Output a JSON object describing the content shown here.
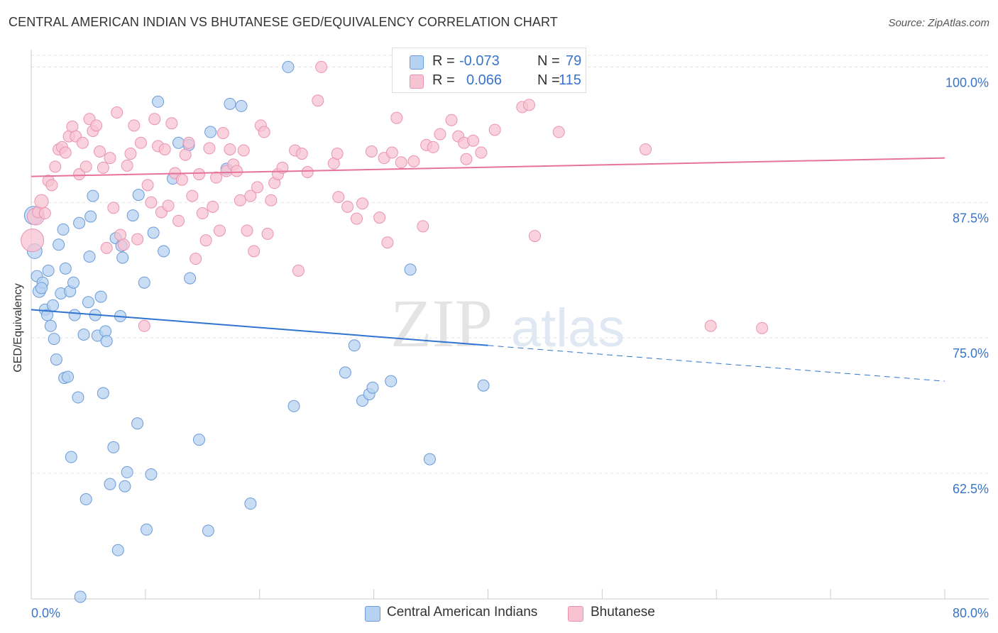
{
  "header": {
    "title": "CENTRAL AMERICAN INDIAN VS BHUTANESE GED/EQUIVALENCY CORRELATION CHART",
    "source": "Source: ZipAtlas.com"
  },
  "watermark": {
    "part1": "ZIP",
    "part2": "atlas"
  },
  "legend_top": {
    "rows": [
      {
        "r_label": "R =",
        "r_value": "-0.073",
        "n_label": "N =",
        "n_value": "79"
      },
      {
        "r_label": "R =",
        "r_value": "0.066",
        "n_label": "N =",
        "n_value": "115"
      }
    ]
  },
  "colors": {
    "blue_fill": "#b7d1f2",
    "blue_stroke": "#6b9bd8",
    "blue_line": "#2f74cf",
    "pink_fill": "#f7c3d3",
    "pink_stroke": "#ea93b0",
    "pink_line": "#e7739a",
    "tick_label": "#3a74c9",
    "grid": "#e3e3e3"
  },
  "chart_data": {
    "type": "scatter",
    "title": "CENTRAL AMERICAN INDIAN VS BHUTANESE GED/EQUIVALENCY CORRELATION CHART",
    "xlabel": "",
    "ylabel": "GED/Equivalency",
    "xlim": [
      0,
      80
    ],
    "ylim": [
      50.9,
      101.6
    ],
    "x_tick_labels": [
      "0.0%",
      "80.0%"
    ],
    "y_ticks": [
      62.5,
      75.0,
      87.5,
      100.0
    ],
    "y_tick_labels": [
      "62.5%",
      "75.0%",
      "87.5%",
      "100.0%"
    ],
    "grid": true,
    "legend_position": "top-center",
    "series": [
      {
        "name": "Central American Indians",
        "R": -0.073,
        "N": 79,
        "trend": {
          "x0": 0,
          "y0": 77.6,
          "x1": 40,
          "y1": 74.3,
          "dash_to_x": 80,
          "dash_to_y": 71.0
        },
        "points": [
          [
            0.2,
            86.3,
            1.6
          ],
          [
            0.3,
            83.0,
            1.3
          ],
          [
            0.5,
            80.7,
            1.0
          ],
          [
            0.7,
            79.3,
            1.1
          ],
          [
            1.0,
            80.1,
            1.0
          ],
          [
            0.9,
            79.6,
            1.0
          ],
          [
            1.2,
            77.6,
            1.0
          ],
          [
            1.5,
            81.2,
            1.0
          ],
          [
            1.4,
            77.1,
            1.0
          ],
          [
            1.7,
            76.1,
            1.0
          ],
          [
            1.9,
            78.0,
            1.0
          ],
          [
            2.0,
            74.9,
            1.0
          ],
          [
            2.2,
            73.0,
            1.0
          ],
          [
            2.4,
            83.6,
            1.0
          ],
          [
            2.6,
            79.1,
            1.0
          ],
          [
            2.8,
            85.0,
            1.0
          ],
          [
            2.9,
            71.3,
            1.0
          ],
          [
            3.0,
            81.4,
            1.0
          ],
          [
            3.2,
            71.4,
            1.0
          ],
          [
            3.4,
            79.3,
            1.0
          ],
          [
            3.5,
            64.0,
            1.0
          ],
          [
            3.7,
            80.1,
            1.0
          ],
          [
            3.8,
            77.1,
            1.0
          ],
          [
            4.1,
            69.5,
            1.0
          ],
          [
            4.2,
            85.6,
            1.0
          ],
          [
            4.6,
            75.3,
            1.0
          ],
          [
            4.8,
            60.1,
            1.0
          ],
          [
            5.0,
            78.3,
            1.0
          ],
          [
            5.1,
            82.5,
            1.0
          ],
          [
            5.2,
            86.2,
            1.0
          ],
          [
            5.4,
            88.1,
            1.0
          ],
          [
            5.6,
            77.1,
            1.0
          ],
          [
            5.8,
            75.2,
            1.0
          ],
          [
            6.1,
            78.8,
            1.0
          ],
          [
            6.3,
            69.9,
            1.0
          ],
          [
            6.5,
            75.6,
            1.0
          ],
          [
            6.6,
            74.7,
            1.0
          ],
          [
            6.9,
            61.5,
            1.0
          ],
          [
            7.2,
            64.9,
            1.0
          ],
          [
            7.4,
            84.2,
            1.0
          ],
          [
            7.6,
            55.4,
            1.0
          ],
          [
            7.8,
            77.0,
            1.0
          ],
          [
            7.9,
            83.5,
            1.0
          ],
          [
            8.0,
            82.4,
            1.0
          ],
          [
            8.2,
            61.3,
            1.0
          ],
          [
            8.4,
            62.6,
            1.0
          ],
          [
            8.9,
            86.3,
            1.0
          ],
          [
            9.3,
            67.1,
            1.0
          ],
          [
            9.4,
            88.2,
            1.0
          ],
          [
            9.9,
            80.1,
            1.0
          ],
          [
            10.1,
            57.3,
            1.0
          ],
          [
            10.5,
            62.4,
            1.0
          ],
          [
            10.7,
            84.7,
            1.0
          ],
          [
            11.1,
            96.8,
            1.0
          ],
          [
            11.6,
            83.0,
            1.0
          ],
          [
            12.4,
            89.7,
            1.0
          ],
          [
            12.9,
            93.0,
            1.0
          ],
          [
            13.8,
            92.8,
            1.0
          ],
          [
            13.9,
            80.5,
            1.0
          ],
          [
            14.7,
            65.6,
            1.0
          ],
          [
            15.5,
            57.2,
            1.0
          ],
          [
            15.7,
            94.0,
            1.0
          ],
          [
            17.1,
            90.6,
            1.0
          ],
          [
            17.4,
            96.6,
            1.0
          ],
          [
            18.4,
            96.4,
            1.0
          ],
          [
            19.2,
            59.7,
            1.0
          ],
          [
            22.5,
            100.0,
            1.0
          ],
          [
            23.0,
            68.7,
            1.0
          ],
          [
            27.5,
            71.8,
            1.0
          ],
          [
            28.3,
            74.3,
            1.0
          ],
          [
            29.0,
            69.2,
            1.0
          ],
          [
            29.6,
            69.8,
            1.0
          ],
          [
            29.9,
            70.4,
            1.0
          ],
          [
            31.5,
            71.0,
            1.0
          ],
          [
            33.2,
            81.3,
            1.0
          ],
          [
            34.9,
            63.8,
            1.0
          ],
          [
            39.6,
            70.6,
            1.0
          ],
          [
            4.3,
            51.1,
            1.0
          ],
          [
            9.0,
            70.0,
            0.0
          ]
        ]
      },
      {
        "name": "Bhutanese",
        "R": 0.066,
        "N": 115,
        "trend": {
          "x0": 0,
          "y0": 89.9,
          "x1": 80,
          "y1": 91.6
        },
        "points": [
          [
            0.1,
            84.0,
            2.0
          ],
          [
            0.4,
            86.2,
            1.5
          ],
          [
            0.6,
            86.6,
            1.0
          ],
          [
            0.9,
            87.6,
            1.2
          ],
          [
            1.2,
            86.5,
            1.0
          ],
          [
            1.5,
            89.5,
            1.0
          ],
          [
            1.8,
            89.1,
            1.0
          ],
          [
            2.1,
            90.8,
            1.0
          ],
          [
            2.4,
            92.4,
            1.0
          ],
          [
            2.7,
            92.6,
            1.0
          ],
          [
            3.0,
            92.1,
            1.0
          ],
          [
            3.3,
            93.6,
            1.0
          ],
          [
            3.6,
            94.5,
            1.0
          ],
          [
            3.9,
            93.6,
            1.0
          ],
          [
            4.2,
            90.1,
            1.0
          ],
          [
            4.5,
            93.0,
            1.0
          ],
          [
            4.8,
            90.8,
            1.0
          ],
          [
            5.1,
            95.2,
            1.0
          ],
          [
            5.4,
            94.1,
            1.0
          ],
          [
            5.7,
            94.6,
            1.0
          ],
          [
            6.0,
            92.2,
            1.0
          ],
          [
            6.3,
            90.7,
            1.0
          ],
          [
            6.6,
            83.3,
            1.0
          ],
          [
            6.9,
            91.6,
            1.0
          ],
          [
            7.2,
            87.0,
            1.0
          ],
          [
            7.5,
            95.8,
            1.0
          ],
          [
            7.8,
            84.5,
            1.0
          ],
          [
            8.1,
            83.6,
            1.0
          ],
          [
            8.4,
            90.9,
            1.0
          ],
          [
            8.7,
            92.0,
            1.0
          ],
          [
            9.0,
            94.6,
            1.0
          ],
          [
            9.3,
            84.1,
            1.0
          ],
          [
            9.6,
            93.0,
            1.0
          ],
          [
            9.9,
            76.1,
            1.0
          ],
          [
            10.2,
            89.1,
            1.0
          ],
          [
            10.5,
            87.5,
            1.0
          ],
          [
            10.8,
            95.2,
            1.0
          ],
          [
            11.1,
            92.7,
            1.0
          ],
          [
            11.4,
            86.6,
            1.0
          ],
          [
            11.7,
            92.4,
            1.0
          ],
          [
            12.0,
            87.2,
            1.0
          ],
          [
            12.3,
            94.8,
            1.0
          ],
          [
            12.6,
            90.2,
            1.0
          ],
          [
            12.9,
            85.8,
            1.0
          ],
          [
            13.2,
            89.6,
            1.0
          ],
          [
            13.5,
            91.9,
            1.0
          ],
          [
            13.8,
            93.0,
            1.0
          ],
          [
            14.1,
            88.1,
            1.0
          ],
          [
            14.4,
            82.3,
            1.0
          ],
          [
            14.7,
            90.1,
            1.0
          ],
          [
            15.0,
            86.5,
            1.0
          ],
          [
            15.3,
            84.0,
            1.0
          ],
          [
            15.6,
            92.5,
            1.0
          ],
          [
            15.9,
            87.1,
            1.0
          ],
          [
            16.2,
            89.8,
            1.0
          ],
          [
            16.5,
            84.9,
            1.0
          ],
          [
            16.8,
            93.9,
            1.0
          ],
          [
            17.1,
            90.4,
            1.0
          ],
          [
            17.4,
            92.4,
            1.0
          ],
          [
            17.7,
            91.0,
            1.0
          ],
          [
            18.0,
            90.4,
            1.0
          ],
          [
            18.3,
            87.7,
            1.0
          ],
          [
            18.6,
            92.3,
            1.0
          ],
          [
            18.9,
            84.9,
            1.0
          ],
          [
            19.2,
            88.1,
            1.0
          ],
          [
            19.5,
            83.0,
            1.0
          ],
          [
            19.8,
            88.9,
            1.0
          ],
          [
            20.1,
            94.6,
            1.0
          ],
          [
            20.4,
            94.0,
            1.0
          ],
          [
            20.7,
            84.6,
            1.0
          ],
          [
            21.0,
            87.7,
            1.0
          ],
          [
            21.3,
            89.3,
            1.0
          ],
          [
            21.6,
            90.1,
            1.0
          ],
          [
            22.0,
            90.7,
            1.0
          ],
          [
            23.1,
            92.3,
            1.0
          ],
          [
            23.4,
            81.2,
            1.0
          ],
          [
            23.7,
            92.0,
            1.0
          ],
          [
            24.2,
            90.3,
            1.0
          ],
          [
            25.1,
            96.9,
            1.0
          ],
          [
            25.4,
            100.0,
            1.0
          ],
          [
            26.5,
            91.1,
            1.0
          ],
          [
            26.8,
            92.0,
            1.0
          ],
          [
            26.9,
            88.0,
            1.0
          ],
          [
            27.7,
            87.1,
            1.0
          ],
          [
            28.5,
            86.0,
            1.0
          ],
          [
            29.0,
            87.4,
            1.0
          ],
          [
            29.8,
            92.2,
            1.0
          ],
          [
            30.5,
            86.1,
            1.0
          ],
          [
            30.9,
            91.6,
            1.0
          ],
          [
            31.2,
            83.8,
            1.0
          ],
          [
            31.6,
            92.1,
            1.0
          ],
          [
            32.0,
            95.3,
            1.0
          ],
          [
            32.4,
            91.2,
            1.0
          ],
          [
            33.5,
            91.3,
            1.0
          ],
          [
            34.3,
            85.3,
            1.0
          ],
          [
            34.6,
            92.8,
            1.0
          ],
          [
            35.2,
            92.6,
            1.0
          ],
          [
            35.8,
            93.8,
            1.0
          ],
          [
            36.8,
            95.1,
            1.0
          ],
          [
            37.4,
            93.6,
            1.0
          ],
          [
            37.9,
            93.0,
            1.0
          ],
          [
            38.1,
            91.5,
            1.0
          ],
          [
            38.7,
            93.2,
            1.0
          ],
          [
            39.4,
            92.1,
            1.0
          ],
          [
            40.6,
            94.2,
            1.0
          ],
          [
            42.4,
            98.6,
            1.0
          ],
          [
            43.0,
            96.3,
            1.0
          ],
          [
            43.6,
            96.5,
            1.0
          ],
          [
            44.1,
            84.4,
            1.0
          ],
          [
            46.2,
            94.0,
            1.0
          ],
          [
            53.8,
            92.4,
            1.0
          ],
          [
            59.5,
            76.1,
            1.0
          ],
          [
            64.0,
            75.9,
            1.0
          ]
        ]
      }
    ]
  },
  "legend_bottom": {
    "items": [
      "Central American Indians",
      "Bhutanese"
    ]
  }
}
